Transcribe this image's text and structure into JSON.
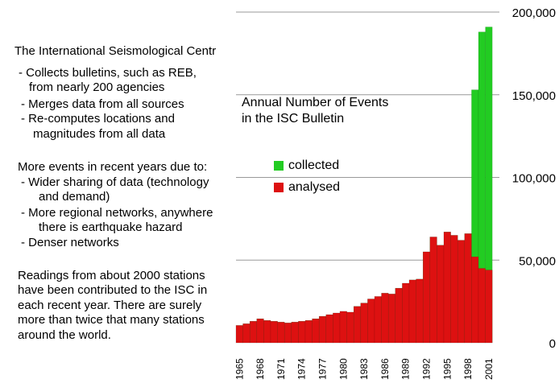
{
  "notes": {
    "heading": "The International Seismological Centr",
    "collects_1": "- Collects bulletins, such as REB,",
    "collects_2": "from nearly 200 agencies",
    "merges": "- Merges data from all sources",
    "recomputes_1": "- Re-computes locations and",
    "recomputes_2": "magnitudes from all data",
    "more_events": "More events in recent years due to:",
    "wider_1": "- Wider sharing of data (technology",
    "wider_2": "and demand)",
    "regional_1": "- More regional networks, anywhere",
    "regional_2": "there is earthquake hazard",
    "denser": "- Denser networks",
    "readings_1": "Readings from about 2000 stations",
    "readings_2": "have been contributed to the ISC in",
    "readings_3": "each recent year.  There are surely",
    "readings_4": "more than twice that many stations",
    "readings_5": "around the world."
  },
  "colors": {
    "collected": "#22cc22",
    "analysed": "#dd1111",
    "grid": "#999999"
  },
  "chart_data": {
    "type": "bar",
    "title_line1": "Annual Number of Events",
    "title_line2": "in the ISC Bulletin",
    "categories": [
      "1965",
      "1966",
      "1967",
      "1968",
      "1969",
      "1970",
      "1971",
      "1972",
      "1973",
      "1974",
      "1975",
      "1976",
      "1977",
      "1978",
      "1979",
      "1980",
      "1981",
      "1982",
      "1983",
      "1984",
      "1985",
      "1986",
      "1987",
      "1988",
      "1989",
      "1990",
      "1991",
      "1992",
      "1993",
      "1994",
      "1995",
      "1996",
      "1997",
      "1998",
      "1999",
      "2000",
      "2001"
    ],
    "tick_labels": [
      "1965",
      "1968",
      "1971",
      "1974",
      "1977",
      "1980",
      "1983",
      "1986",
      "1989",
      "1992",
      "1995",
      "1998",
      "2001"
    ],
    "series": [
      {
        "name": "analysed",
        "values": [
          10500,
          11500,
          13000,
          14500,
          13500,
          13000,
          12500,
          12000,
          12500,
          13000,
          13500,
          14500,
          16000,
          17000,
          18000,
          19000,
          18500,
          22000,
          24000,
          26500,
          28000,
          30000,
          29500,
          33000,
          36000,
          38000,
          38500,
          55000,
          64000,
          59000,
          67000,
          65000,
          62000,
          66000,
          52000,
          45000,
          44000
        ]
      },
      {
        "name": "collected",
        "values": [
          10500,
          11500,
          13000,
          14500,
          13500,
          13000,
          12500,
          12000,
          12500,
          13000,
          13500,
          14500,
          16000,
          17000,
          18000,
          19000,
          18500,
          22000,
          24000,
          26500,
          28000,
          30000,
          29500,
          33000,
          36000,
          38000,
          38500,
          55000,
          64000,
          59000,
          67000,
          65000,
          62000,
          66000,
          153000,
          188000,
          191000
        ]
      }
    ],
    "yticks": [
      "0",
      "50,000",
      "100,000",
      "150,000",
      "200,000"
    ],
    "ylim": [
      0,
      200000
    ],
    "grid": true,
    "legend": "inside-center"
  }
}
